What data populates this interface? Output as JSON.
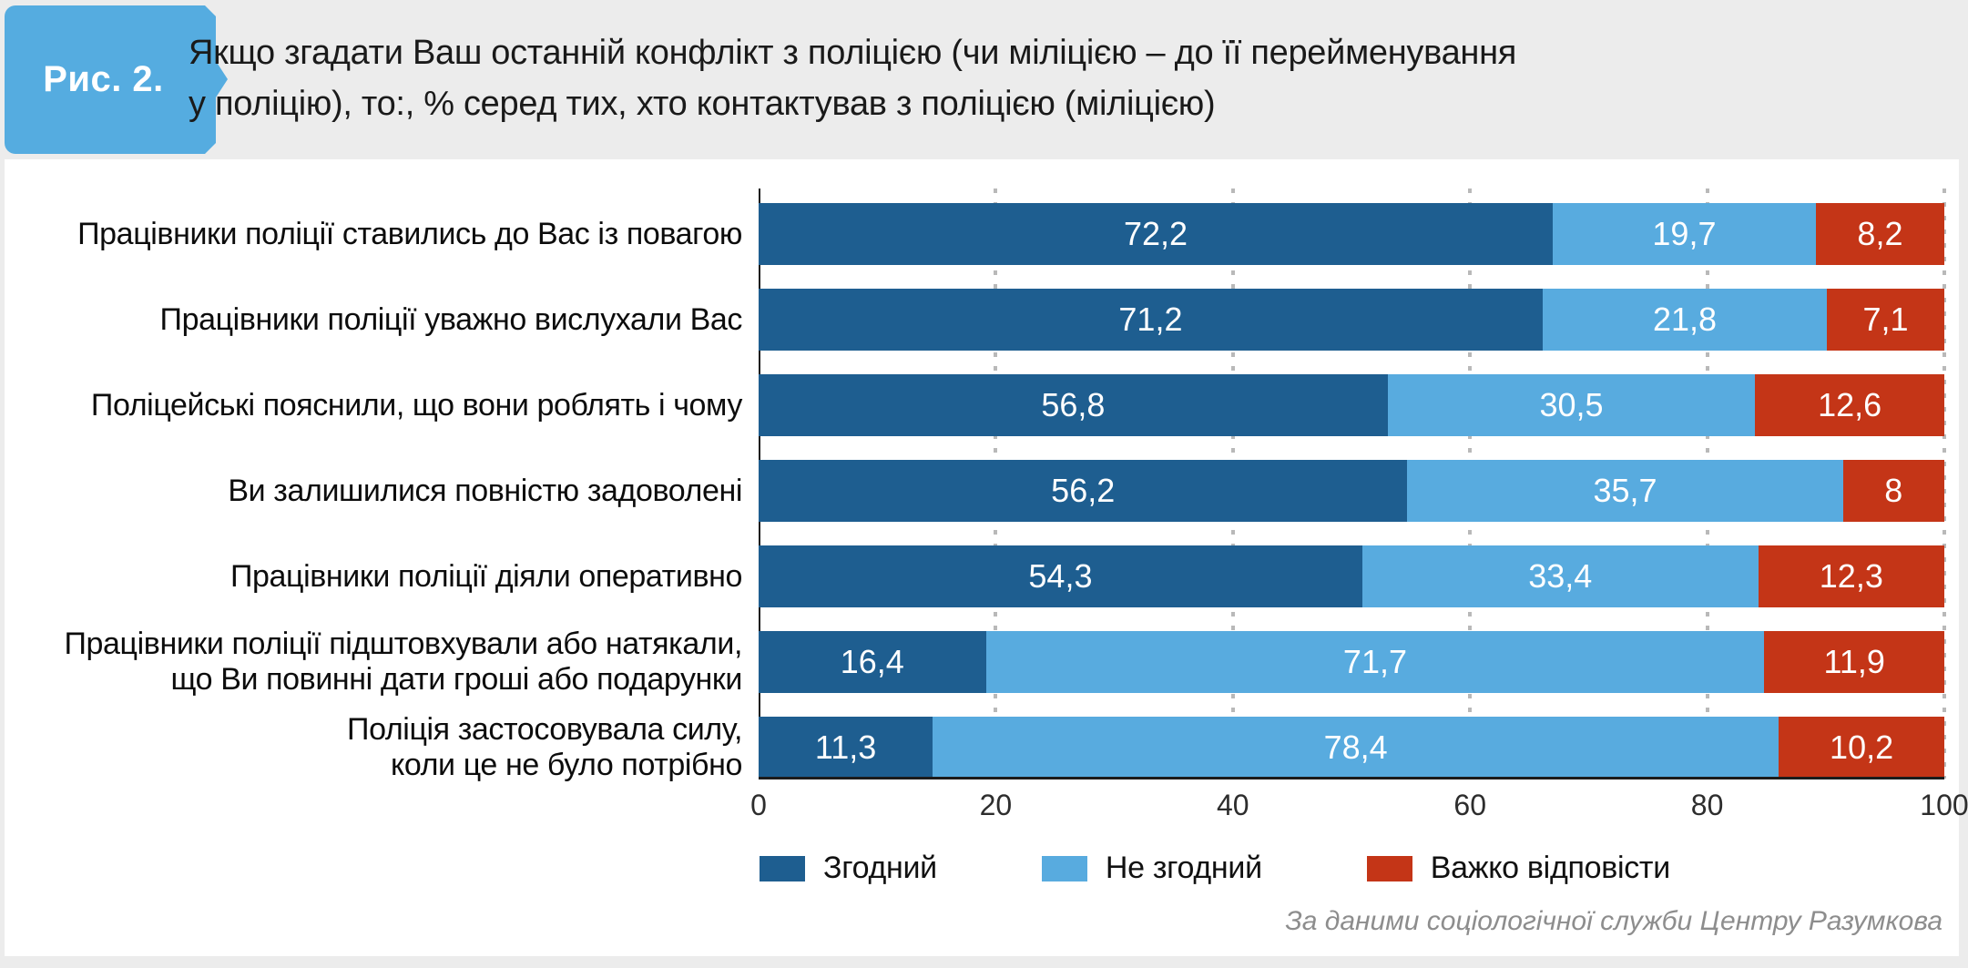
{
  "header": {
    "figure_label": "Рис. 2.",
    "title": "Якщо згадати Ваш останній конфлікт з поліцією (чи міліцією – до її перейменування\nу поліцію), то:, % серед тих, хто контактував з поліцією (міліцією)"
  },
  "footer": {
    "source": "За даними соціологічної служби Центру Разумкова"
  },
  "colors": {
    "badge_blue": "#55ace0",
    "header_band": "#ececec",
    "agree_dark_blue": "#1e5e90",
    "disagree_light_blue": "#58abdf",
    "hard_to_answer_red": "#c43517"
  },
  "chart_data": {
    "type": "bar",
    "orientation": "horizontal",
    "stacked": true,
    "grid": "dotted-vertical",
    "legend_position": "bottom",
    "xlim": [
      0,
      100
    ],
    "x_ticks": [
      "0",
      "20",
      "40",
      "60",
      "80",
      "100"
    ],
    "categories": [
      "Працівники поліції ставились до Вас із повагою",
      "Працівники поліції уважно вислухали Вас",
      "Поліцейські пояснили, що вони роблять і чому",
      "Ви залишилися повністю задоволені",
      "Працівники поліції діяли оперативно",
      "Працівники поліції підштовхували або натякали,\nщо Ви повинні дати гроші або подарунки",
      "Поліція застосовувала силу,\nколи це не було потрібно"
    ],
    "series": [
      {
        "name": "Згодний",
        "color": "#1e5e90",
        "values": [
          72.2,
          71.2,
          56.8,
          56.2,
          54.3,
          16.4,
          11.3
        ]
      },
      {
        "name": "Не згодний",
        "color": "#58abdf",
        "values": [
          19.7,
          21.8,
          30.5,
          35.7,
          33.4,
          71.7,
          78.4
        ]
      },
      {
        "name": "Важко відповісти",
        "color": "#c43517",
        "values": [
          8.2,
          7.1,
          12.6,
          8,
          12.3,
          11.9,
          10.2
        ]
      }
    ],
    "value_labels": [
      [
        "72,2",
        "19,7",
        "8,2"
      ],
      [
        "71,2",
        "21,8",
        "7,1"
      ],
      [
        "56,8",
        "30,5",
        "12,6"
      ],
      [
        "56,2",
        "35,7",
        "8"
      ],
      [
        "54,3",
        "33,4",
        "12,3"
      ],
      [
        "16,4",
        "71,7",
        "11,9"
      ],
      [
        "11,3",
        "78,4",
        "10,2"
      ]
    ]
  }
}
